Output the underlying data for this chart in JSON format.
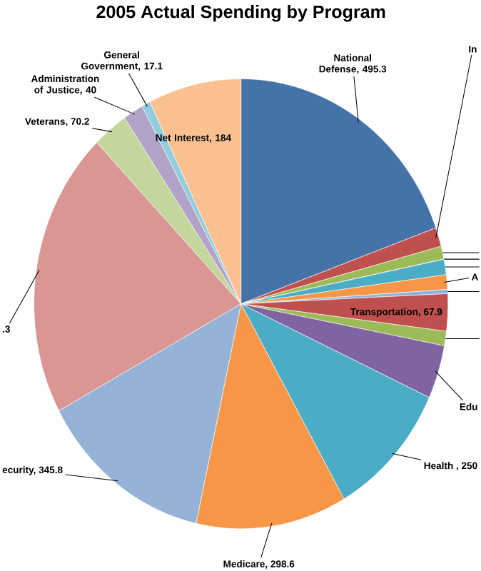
{
  "chart_data": {
    "type": "pie",
    "title": "2005 Actual Spending by Program",
    "categories": [
      "National Defense, 495.3",
      "In",
      null,
      null,
      null,
      "A",
      null,
      "Transportation, 67.9",
      null,
      "Edu",
      "Health , 250",
      "Medicare, 298.6",
      "ecurity, 345.8",
      ".3",
      "Veterans, 70.2",
      "Administration of Justice, 40",
      "General Government, 17.1",
      "Net Interest, 184"
    ],
    "values": [
      495.3,
      34.6,
      23.6,
      0.4,
      28.0,
      26.6,
      7.6,
      67.9,
      26.3,
      97.6,
      250.6,
      298.6,
      345.8,
      523.3,
      70.2,
      40,
      17.1,
      184
    ],
    "colors": [
      "#4572a7",
      "#c0504d",
      "#9bbb59",
      "#8064a2",
      "#4bacc6",
      "#f79646",
      "#8db3e2",
      "#c0504d",
      "#9bbb59",
      "#8064a2",
      "#4bacc6",
      "#f79646",
      "#95b3d7",
      "#d99694",
      "#c3d69b",
      "#b3a2c7",
      "#93cddd",
      "#fac090"
    ]
  }
}
